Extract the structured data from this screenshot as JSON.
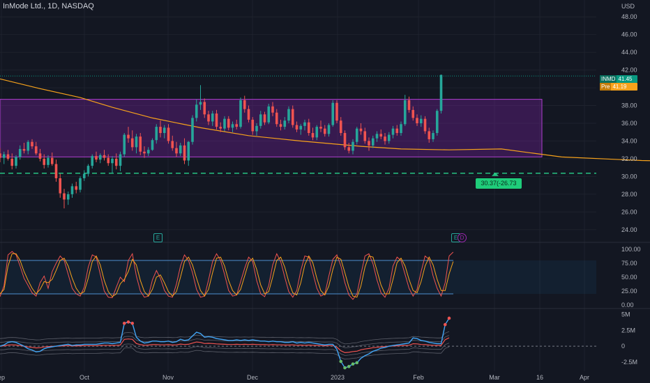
{
  "legend": {
    "title": "InMode Ltd., 1D, NASDAQ"
  },
  "price_tags": {
    "symbol": "INMD",
    "symbol_price": "41.45",
    "pre_label": "Pre",
    "pre_price": "41.19"
  },
  "level_badge": "30.37(-26.73",
  "earnings_markers": [
    "E",
    "E",
    "D"
  ],
  "colors": {
    "up": "#26a69a",
    "down": "#ef5350",
    "ma": "#f7a21b",
    "box": "#7b1fa2",
    "level": "#26c281"
  },
  "chart_data": [
    {
      "type": "candlestick",
      "currency": "USD",
      "y_ticks": [
        "48.00",
        "46.00",
        "44.00",
        "42.00",
        "40.00",
        "38.00",
        "36.00",
        "34.00",
        "32.00",
        "30.00",
        "28.00",
        "26.00",
        "24.00"
      ],
      "x_ticks": [
        "ep",
        "Oct",
        "Nov",
        "Dec",
        "2023",
        "Feb",
        "Mar",
        "16",
        "Apr"
      ],
      "ylim": [
        23.2,
        49.9
      ],
      "last_close": 41.45,
      "premarket": 41.19,
      "range_box": {
        "low": 32.2,
        "high": 38.7
      },
      "support_level": 30.37,
      "ohlc": [
        [
          32.6,
          33.2,
          31.6,
          32.1
        ],
        [
          32.1,
          32.8,
          31.4,
          32.5
        ],
        [
          32.5,
          33.0,
          31.8,
          32.0
        ],
        [
          32.0,
          32.6,
          30.8,
          31.2
        ],
        [
          31.2,
          32.4,
          30.9,
          32.2
        ],
        [
          32.2,
          33.5,
          31.9,
          33.1
        ],
        [
          33.1,
          33.8,
          32.6,
          32.9
        ],
        [
          32.9,
          34.1,
          32.5,
          33.9
        ],
        [
          33.9,
          34.2,
          33.1,
          33.4
        ],
        [
          33.4,
          33.9,
          32.4,
          32.6
        ],
        [
          32.6,
          33.1,
          31.7,
          32.0
        ],
        [
          32.0,
          32.5,
          30.9,
          31.3
        ],
        [
          31.3,
          32.4,
          31.0,
          32.1
        ],
        [
          32.1,
          32.7,
          31.2,
          31.4
        ],
        [
          31.4,
          31.9,
          29.4,
          29.8
        ],
        [
          29.8,
          30.3,
          27.6,
          28.1
        ],
        [
          28.1,
          28.6,
          26.4,
          27.4
        ],
        [
          27.4,
          28.3,
          26.8,
          28.0
        ],
        [
          28.0,
          29.2,
          27.6,
          28.9
        ],
        [
          28.9,
          29.4,
          28.1,
          28.5
        ],
        [
          28.5,
          30.0,
          28.2,
          29.8
        ],
        [
          29.8,
          30.7,
          29.5,
          30.3
        ],
        [
          30.3,
          31.4,
          30.0,
          31.2
        ],
        [
          31.2,
          32.5,
          30.9,
          32.3
        ],
        [
          32.3,
          32.8,
          31.6,
          31.9
        ],
        [
          31.9,
          32.6,
          31.5,
          32.4
        ],
        [
          32.4,
          33.0,
          31.8,
          32.1
        ],
        [
          32.1,
          32.5,
          31.2,
          31.5
        ],
        [
          31.5,
          32.3,
          30.4,
          32.0
        ],
        [
          32.0,
          32.6,
          30.8,
          31.2
        ],
        [
          31.2,
          32.8,
          30.6,
          32.5
        ],
        [
          32.5,
          34.9,
          32.2,
          34.7
        ],
        [
          34.7,
          35.6,
          33.8,
          34.3
        ],
        [
          34.3,
          35.2,
          32.9,
          33.3
        ],
        [
          33.3,
          34.8,
          32.6,
          34.5
        ],
        [
          34.5,
          34.9,
          32.4,
          32.8
        ],
        [
          32.8,
          33.4,
          32.1,
          32.6
        ],
        [
          32.6,
          33.3,
          32.3,
          33.0
        ],
        [
          33.0,
          34.3,
          32.9,
          34.1
        ],
        [
          34.1,
          35.9,
          33.7,
          35.6
        ],
        [
          35.6,
          36.3,
          34.4,
          34.9
        ],
        [
          34.9,
          35.8,
          34.3,
          35.5
        ],
        [
          35.5,
          35.9,
          33.7,
          34.0
        ],
        [
          34.0,
          34.6,
          32.9,
          33.2
        ],
        [
          33.2,
          33.9,
          32.2,
          32.6
        ],
        [
          32.6,
          33.8,
          32.3,
          33.5
        ],
        [
          33.5,
          34.3,
          31.4,
          31.8
        ],
        [
          31.8,
          34.0,
          31.2,
          33.9
        ],
        [
          33.9,
          36.9,
          33.6,
          36.6
        ],
        [
          36.6,
          38.7,
          36.2,
          38.1
        ],
        [
          38.1,
          40.3,
          37.5,
          38.4
        ],
        [
          38.4,
          38.8,
          36.6,
          37.0
        ],
        [
          37.0,
          37.4,
          35.8,
          36.2
        ],
        [
          36.2,
          37.4,
          35.7,
          37.1
        ],
        [
          37.1,
          37.5,
          35.3,
          35.6
        ],
        [
          35.6,
          36.1,
          35.0,
          35.4
        ],
        [
          35.4,
          36.8,
          35.1,
          36.5
        ],
        [
          36.5,
          36.8,
          35.2,
          35.5
        ],
        [
          35.5,
          36.2,
          35.0,
          35.9
        ],
        [
          35.9,
          36.4,
          35.3,
          35.6
        ],
        [
          35.6,
          38.9,
          35.4,
          38.6
        ],
        [
          38.6,
          39.1,
          37.2,
          37.6
        ],
        [
          37.6,
          38.0,
          36.1,
          36.4
        ],
        [
          36.4,
          36.7,
          34.7,
          35.1
        ],
        [
          35.1,
          36.0,
          34.6,
          35.7
        ],
        [
          35.7,
          37.4,
          35.4,
          37.0
        ],
        [
          37.0,
          37.3,
          35.8,
          36.1
        ],
        [
          36.1,
          38.2,
          35.9,
          37.9
        ],
        [
          37.9,
          38.4,
          36.8,
          37.2
        ],
        [
          37.2,
          37.6,
          35.6,
          35.9
        ],
        [
          35.9,
          36.4,
          35.2,
          35.6
        ],
        [
          35.6,
          36.7,
          35.3,
          36.3
        ],
        [
          36.3,
          37.9,
          36.0,
          37.6
        ],
        [
          37.6,
          38.0,
          35.5,
          35.8
        ],
        [
          35.8,
          36.2,
          35.0,
          35.3
        ],
        [
          35.3,
          35.9,
          34.7,
          35.7
        ],
        [
          35.7,
          36.4,
          35.2,
          36.1
        ],
        [
          36.1,
          36.5,
          34.6,
          34.9
        ],
        [
          34.9,
          35.5,
          34.1,
          34.4
        ],
        [
          34.4,
          35.8,
          34.1,
          35.6
        ],
        [
          35.6,
          36.3,
          35.0,
          35.4
        ],
        [
          35.4,
          35.8,
          34.5,
          34.8
        ],
        [
          34.8,
          36.0,
          34.5,
          35.8
        ],
        [
          35.8,
          38.6,
          35.6,
          38.3
        ],
        [
          38.3,
          38.6,
          36.0,
          36.3
        ],
        [
          36.3,
          36.7,
          34.6,
          34.9
        ],
        [
          34.9,
          35.2,
          33.0,
          33.3
        ],
        [
          33.3,
          33.8,
          32.6,
          32.9
        ],
        [
          32.9,
          34.2,
          32.5,
          33.9
        ],
        [
          33.9,
          35.6,
          33.6,
          35.4
        ],
        [
          35.4,
          36.0,
          34.7,
          35.1
        ],
        [
          35.1,
          35.5,
          33.7,
          34.0
        ],
        [
          34.0,
          34.4,
          32.9,
          33.5
        ],
        [
          33.5,
          34.6,
          33.2,
          34.3
        ],
        [
          34.3,
          35.1,
          33.9,
          34.8
        ],
        [
          34.8,
          35.3,
          34.2,
          34.5
        ],
        [
          34.5,
          34.9,
          33.6,
          34.0
        ],
        [
          34.0,
          35.0,
          33.7,
          34.7
        ],
        [
          34.7,
          35.7,
          34.3,
          35.4
        ],
        [
          35.4,
          35.8,
          34.6,
          34.9
        ],
        [
          34.9,
          36.2,
          34.6,
          35.9
        ],
        [
          35.9,
          39.2,
          35.7,
          38.6
        ],
        [
          38.6,
          39.0,
          37.2,
          37.5
        ],
        [
          37.5,
          37.9,
          36.3,
          36.6
        ],
        [
          36.6,
          37.0,
          35.7,
          36.0
        ],
        [
          36.0,
          36.9,
          35.6,
          36.5
        ],
        [
          36.5,
          36.8,
          34.8,
          35.1
        ],
        [
          35.1,
          35.5,
          33.8,
          34.2
        ],
        [
          34.2,
          35.2,
          33.9,
          34.9
        ],
        [
          34.9,
          37.6,
          34.6,
          37.4
        ],
        [
          37.4,
          41.5,
          37.1,
          41.45
        ]
      ],
      "moving_average": [
        [
          0,
          41.0
        ],
        [
          10,
          39.9
        ],
        [
          20,
          38.9
        ],
        [
          28,
          37.8
        ],
        [
          38,
          36.6
        ],
        [
          50,
          35.5
        ],
        [
          62,
          34.6
        ],
        [
          75,
          34.0
        ],
        [
          90,
          33.4
        ],
        [
          100,
          33.1
        ],
        [
          112,
          33.0
        ],
        [
          125,
          33.1
        ],
        [
          140,
          32.2
        ],
        [
          160,
          31.8
        ],
        [
          180,
          31.6
        ],
        [
          200,
          31.5
        ],
        [
          218,
          31.45
        ],
        [
          228,
          31.4
        ],
        [
          236,
          32.4
        ],
        [
          244,
          33.2
        ]
      ]
    },
    {
      "type": "line",
      "indicator": "stochastic",
      "y_ticks": [
        "100.00",
        "75.00",
        "50.00",
        "25.00",
        "0.00"
      ],
      "ylim": [
        0,
        100
      ],
      "bands": [
        80,
        20
      ],
      "series": [
        {
          "values": [
            15,
            35,
            90,
            96,
            90,
            70,
            48,
            35,
            22,
            16,
            40,
            52,
            30,
            60,
            75,
            88,
            80,
            55,
            30,
            20,
            16,
            32,
            68,
            90,
            86,
            55,
            25,
            14,
            13,
            32,
            50,
            42,
            80,
            92,
            52,
            25,
            14,
            16,
            45,
            62,
            48,
            26,
            16,
            14,
            38,
            70,
            90,
            80,
            58,
            28,
            14,
            16,
            45,
            78,
            92,
            80,
            55,
            26,
            16,
            18,
            42,
            66,
            86,
            78,
            44,
            20,
            15,
            35,
            72,
            92,
            78,
            50,
            24,
            14,
            26,
            62,
            88,
            86,
            58,
            30,
            16,
            20,
            52,
            82,
            90,
            70,
            40,
            18,
            10,
            20,
            55,
            88,
            92,
            74,
            45,
            22,
            14,
            30,
            70,
            86,
            80,
            55,
            30,
            16,
            28,
            60,
            88,
            82,
            52,
            30,
            16,
            40,
            88,
            95
          ]
        },
        {
          "values": [
            20,
            28,
            70,
            92,
            92,
            80,
            60,
            44,
            30,
            20,
            28,
            42,
            40,
            46,
            62,
            80,
            84,
            70,
            48,
            30,
            20,
            24,
            48,
            78,
            88,
            72,
            44,
            24,
            15,
            20,
            38,
            46,
            60,
            82,
            72,
            44,
            24,
            16,
            28,
            50,
            54,
            40,
            24,
            16,
            24,
            50,
            78,
            86,
            72,
            48,
            26,
            16,
            28,
            58,
            84,
            86,
            70,
            44,
            26,
            18,
            28,
            52,
            76,
            84,
            64,
            36,
            20,
            24,
            50,
            80,
            86,
            68,
            42,
            22,
            18,
            40,
            72,
            88,
            76,
            48,
            26,
            18,
            34,
            64,
            86,
            82,
            58,
            32,
            16,
            14,
            34,
            68,
            88,
            86,
            62,
            36,
            20,
            20,
            46,
            76,
            84,
            70,
            46,
            26,
            22,
            42,
            70,
            86,
            72,
            46,
            26,
            26,
            56,
            78
          ]
        }
      ]
    },
    {
      "type": "line",
      "indicator": "volume-oscillator",
      "y_ticks": [
        "5M",
        "2.5M",
        "0",
        "-2.5M"
      ],
      "ylim": [
        -3.6,
        5.6
      ],
      "series": [
        {
          "values": [
            0,
            0.2,
            0.6,
            0.7,
            0.6,
            0.3,
            0,
            -0.4,
            -0.6,
            -0.9,
            -0.8,
            -0.4,
            -0.2,
            -0.1,
            0,
            0.1,
            0.2,
            0.3,
            0.1,
            0.2,
            0.2,
            0.3,
            0.3,
            0.3,
            0.3,
            0.4,
            0.5,
            0.5,
            0.4,
            0.5,
            0.6,
            3.6,
            3.8,
            3.6,
            1.4,
            0.8,
            0.5,
            0.6,
            0.8,
            0.8,
            0.7,
            0.7,
            0.8,
            0.6,
            0.7,
            1.1,
            0.9,
            1.0,
            1.6,
            2.2,
            2.0,
            1.4,
            1.5,
            1.4,
            1.2,
            1.1,
            1.0,
            0.9,
            0.9,
            1.0,
            0.9,
            1.0,
            0.9,
            1.0,
            0.9,
            0.8,
            0.8,
            0.7,
            0.8,
            0.7,
            0.7,
            0.6,
            0.6,
            0.7,
            0.5,
            0.6,
            0.5,
            0.6,
            0.5,
            0.4,
            0.3,
            0.2,
            0.3,
            0.3,
            -0.5,
            -2.4,
            -3.4,
            -3.2,
            -2.8,
            -2.6,
            -1.9,
            -1.5,
            -1.2,
            -0.8,
            -0.6,
            -0.3,
            -0.2,
            0,
            0.1,
            0.2,
            0.3,
            0.4,
            0.5,
            1.3,
            1.2,
            0.9,
            0.8,
            0.6,
            0.5,
            0.4,
            0.4,
            3.4,
            4.4
          ]
        }
      ]
    }
  ]
}
